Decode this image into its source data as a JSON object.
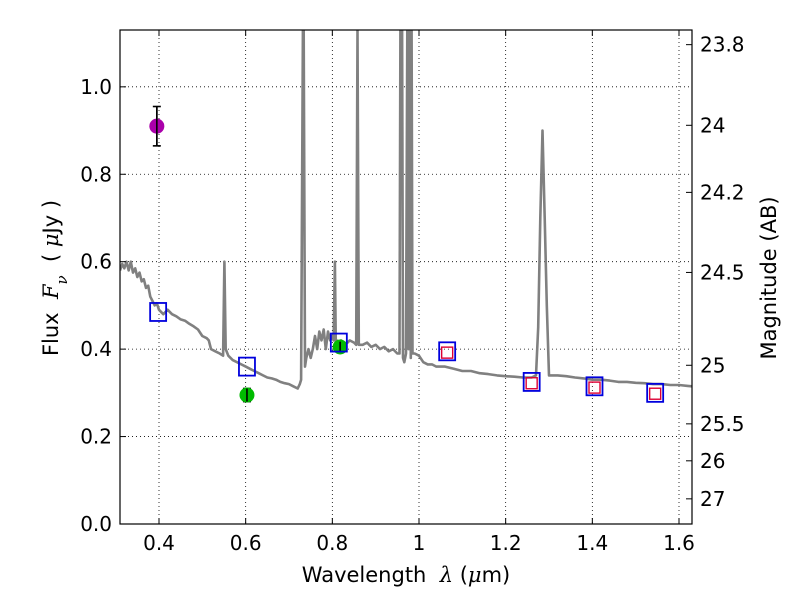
{
  "chart_data": {
    "type": "line",
    "xlabel_prefix": "Wavelength  ",
    "xlabel_symbol": "λ",
    "xlabel_unit_open": " (",
    "xlabel_unit_mu": "μ",
    "xlabel_unit_rest": "m)",
    "ylabel_prefix": "Flux  ",
    "ylabel_symbol": "F",
    "ylabel_sub": "ν",
    "ylabel_unit_open": "  ( ",
    "ylabel_unit_mu": "μ",
    "ylabel_unit_rest": "Jy )",
    "y2label": "Magnitude (AB)",
    "xlim": [
      0.31,
      1.63
    ],
    "ylim": [
      0.0,
      1.13
    ],
    "grid": true,
    "x_ticks": [
      0.4,
      0.6,
      0.8,
      1.0,
      1.2,
      1.4,
      1.6
    ],
    "x_tick_labels": [
      "0.4",
      "0.6",
      "0.8",
      "1",
      "1.2",
      "1.4",
      "1.6"
    ],
    "y_ticks": [
      0.0,
      0.2,
      0.4,
      0.6,
      0.8,
      1.0
    ],
    "y_tick_labels": [
      "0.0",
      "0.2",
      "0.4",
      "0.6",
      "0.8",
      "1.0"
    ],
    "mag_ticks": [
      23.8,
      24.0,
      24.2,
      24.5,
      25.0,
      25.5,
      26.0,
      27.0
    ],
    "mag_tick_labels": [
      "23.8",
      "24",
      "24.2",
      "24.5",
      "25",
      "25.5",
      "26",
      "27"
    ],
    "colors": {
      "model": "#808080",
      "photometry_purple": "#aa00aa",
      "photometry_green": "#00bb00",
      "model_band_box": "#0000dd",
      "fitted_band_box": "#dd0033",
      "errorbar": "#000000"
    },
    "series": [
      {
        "name": "model_spectrum",
        "kind": "line",
        "points": [
          [
            0.31,
            0.58
          ],
          [
            0.315,
            0.595
          ],
          [
            0.32,
            0.585
          ],
          [
            0.325,
            0.6
          ],
          [
            0.33,
            0.58
          ],
          [
            0.335,
            0.6
          ],
          [
            0.34,
            0.575
          ],
          [
            0.345,
            0.585
          ],
          [
            0.35,
            0.565
          ],
          [
            0.355,
            0.575
          ],
          [
            0.36,
            0.555
          ],
          [
            0.365,
            0.56
          ],
          [
            0.37,
            0.54
          ],
          [
            0.375,
            0.545
          ],
          [
            0.38,
            0.52
          ],
          [
            0.385,
            0.51
          ],
          [
            0.39,
            0.5
          ],
          [
            0.395,
            0.505
          ],
          [
            0.4,
            0.49
          ],
          [
            0.41,
            0.48
          ],
          [
            0.42,
            0.49
          ],
          [
            0.43,
            0.48
          ],
          [
            0.44,
            0.475
          ],
          [
            0.45,
            0.468
          ],
          [
            0.46,
            0.465
          ],
          [
            0.47,
            0.458
          ],
          [
            0.48,
            0.452
          ],
          [
            0.49,
            0.445
          ],
          [
            0.5,
            0.43
          ],
          [
            0.51,
            0.425
          ],
          [
            0.515,
            0.42
          ],
          [
            0.52,
            0.4
          ],
          [
            0.53,
            0.395
          ],
          [
            0.54,
            0.39
          ],
          [
            0.548,
            0.385
          ],
          [
            0.551,
            0.6
          ],
          [
            0.554,
            0.4
          ],
          [
            0.56,
            0.385
          ],
          [
            0.57,
            0.375
          ],
          [
            0.58,
            0.37
          ],
          [
            0.59,
            0.365
          ],
          [
            0.6,
            0.36
          ],
          [
            0.61,
            0.355
          ],
          [
            0.62,
            0.35
          ],
          [
            0.63,
            0.345
          ],
          [
            0.64,
            0.34
          ],
          [
            0.65,
            0.335
          ],
          [
            0.66,
            0.333
          ],
          [
            0.67,
            0.33
          ],
          [
            0.68,
            0.325
          ],
          [
            0.69,
            0.322
          ],
          [
            0.7,
            0.32
          ],
          [
            0.71,
            0.315
          ],
          [
            0.72,
            0.31
          ],
          [
            0.725,
            0.32
          ],
          [
            0.728,
            0.33
          ],
          [
            0.732,
            1.13
          ],
          [
            0.734,
            1.13
          ],
          [
            0.737,
            0.36
          ],
          [
            0.74,
            0.38
          ],
          [
            0.745,
            0.4
          ],
          [
            0.75,
            0.38
          ],
          [
            0.755,
            0.4
          ],
          [
            0.76,
            0.43
          ],
          [
            0.765,
            0.4
          ],
          [
            0.77,
            0.44
          ],
          [
            0.775,
            0.42
          ],
          [
            0.78,
            0.445
          ],
          [
            0.785,
            0.4
          ],
          [
            0.79,
            0.44
          ],
          [
            0.795,
            0.42
          ],
          [
            0.8,
            0.43
          ],
          [
            0.803,
            0.42
          ],
          [
            0.806,
            0.6
          ],
          [
            0.808,
            0.41
          ],
          [
            0.81,
            0.42
          ],
          [
            0.815,
            0.415
          ],
          [
            0.82,
            0.42
          ],
          [
            0.83,
            0.41
          ],
          [
            0.84,
            0.42
          ],
          [
            0.85,
            0.415
          ],
          [
            0.855,
            0.41
          ],
          [
            0.858,
            1.13
          ],
          [
            0.861,
            0.41
          ],
          [
            0.87,
            0.41
          ],
          [
            0.88,
            0.415
          ],
          [
            0.89,
            0.405
          ],
          [
            0.9,
            0.41
          ],
          [
            0.91,
            0.4
          ],
          [
            0.92,
            0.405
          ],
          [
            0.93,
            0.395
          ],
          [
            0.94,
            0.4
          ],
          [
            0.95,
            0.39
          ],
          [
            0.955,
            0.39
          ],
          [
            0.957,
            1.13
          ],
          [
            0.961,
            1.13
          ],
          [
            0.963,
            0.38
          ],
          [
            0.966,
            0.37
          ],
          [
            0.97,
            0.39
          ],
          [
            0.973,
            1.13
          ],
          [
            0.976,
            0.4
          ],
          [
            0.978,
            1.13
          ],
          [
            0.981,
            0.38
          ],
          [
            0.983,
            1.13
          ],
          [
            0.985,
            0.39
          ],
          [
            0.99,
            0.39
          ],
          [
            1.0,
            0.385
          ],
          [
            1.01,
            0.37
          ],
          [
            1.02,
            0.365
          ],
          [
            1.03,
            0.365
          ],
          [
            1.04,
            0.36
          ],
          [
            1.06,
            0.36
          ],
          [
            1.08,
            0.355
          ],
          [
            1.1,
            0.35
          ],
          [
            1.12,
            0.35
          ],
          [
            1.14,
            0.345
          ],
          [
            1.16,
            0.343
          ],
          [
            1.18,
            0.34
          ],
          [
            1.2,
            0.338
          ],
          [
            1.22,
            0.337
          ],
          [
            1.24,
            0.335
          ],
          [
            1.26,
            0.335
          ],
          [
            1.27,
            0.34
          ],
          [
            1.275,
            0.45
          ],
          [
            1.28,
            0.7
          ],
          [
            1.285,
            0.9
          ],
          [
            1.29,
            0.7
          ],
          [
            1.295,
            0.5
          ],
          [
            1.3,
            0.34
          ],
          [
            1.32,
            0.34
          ],
          [
            1.34,
            0.338
          ],
          [
            1.36,
            0.335
          ],
          [
            1.38,
            0.333
          ],
          [
            1.4,
            0.33
          ],
          [
            1.42,
            0.33
          ],
          [
            1.44,
            0.328
          ],
          [
            1.46,
            0.325
          ],
          [
            1.48,
            0.325
          ],
          [
            1.5,
            0.323
          ],
          [
            1.52,
            0.322
          ],
          [
            1.54,
            0.32
          ],
          [
            1.56,
            0.32
          ],
          [
            1.58,
            0.318
          ],
          [
            1.6,
            0.318
          ],
          [
            1.62,
            0.316
          ],
          [
            1.63,
            0.315
          ]
        ]
      },
      {
        "name": "observed_purple",
        "kind": "point",
        "points": [
          {
            "x": 0.395,
            "y": 0.91,
            "yerr": 0.045
          }
        ]
      },
      {
        "name": "observed_green",
        "kind": "point",
        "points": [
          {
            "x": 0.603,
            "y": 0.295,
            "yerr": 0.015
          },
          {
            "x": 0.818,
            "y": 0.405,
            "yerr": 0.012
          }
        ]
      },
      {
        "name": "model_band_flux_blue_squares",
        "kind": "marker",
        "points": [
          [
            0.398,
            0.485
          ],
          [
            0.603,
            0.36
          ],
          [
            0.815,
            0.415
          ],
          [
            1.065,
            0.395
          ],
          [
            1.26,
            0.325
          ],
          [
            1.405,
            0.315
          ],
          [
            1.545,
            0.3
          ]
        ]
      },
      {
        "name": "fit_band_flux_red_squares",
        "kind": "marker",
        "points": [
          [
            1.065,
            0.392
          ],
          [
            1.26,
            0.322
          ],
          [
            1.405,
            0.312
          ],
          [
            1.545,
            0.298
          ]
        ]
      }
    ]
  }
}
